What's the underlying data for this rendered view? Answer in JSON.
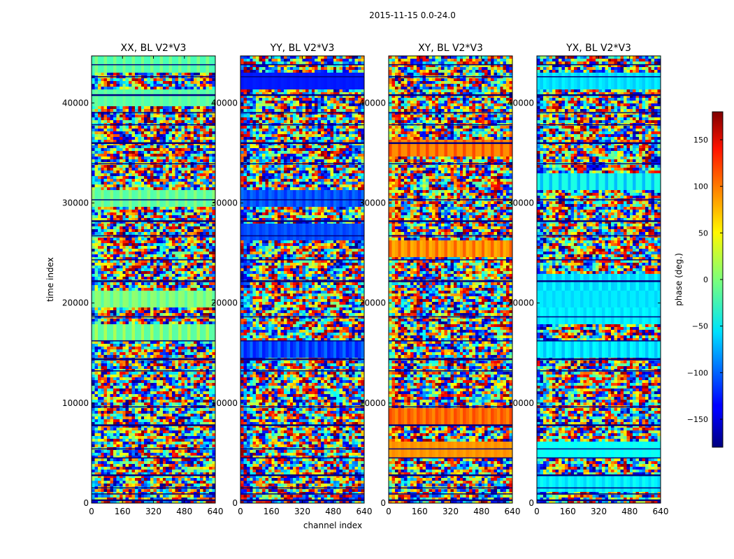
{
  "figure": {
    "suptitle": "2015-11-15 0.0-24.0",
    "ylabel": "time index",
    "xlabel": "channel index"
  },
  "chart_data": {
    "type": "heatmap",
    "colormap": "jet",
    "x_range": [
      0,
      640
    ],
    "y_range": [
      0,
      44700
    ],
    "x_ticks": [
      0,
      160,
      320,
      480,
      640
    ],
    "y_ticks": [
      0,
      10000,
      20000,
      30000,
      40000
    ],
    "grid": false,
    "panels": [
      {
        "title": "XX, BL V2*V3",
        "phase_bias": 0
      },
      {
        "title": "YY, BL V2*V3",
        "phase_bias": -110
      },
      {
        "title": "XY, BL V2*V3",
        "phase_bias": 90
      },
      {
        "title": "YX, BL V2*V3",
        "phase_bias": -50
      }
    ],
    "flagged_rows": [
      300,
      900,
      1500,
      2800,
      4500,
      5400,
      7800,
      9600,
      13200,
      14400,
      16200,
      18600,
      22200,
      24300,
      26700,
      28200,
      30300,
      33900,
      36000,
      37800,
      39000,
      40800,
      42600,
      43800
    ],
    "colorbar": {
      "label": "phase (deg.)",
      "range": [
        -180,
        180
      ],
      "ticks": [
        -150,
        -100,
        -50,
        0,
        50,
        100,
        150
      ],
      "tick_labels": [
        "−150",
        "−100",
        "−50",
        "0",
        "50",
        "100",
        "150"
      ]
    }
  }
}
